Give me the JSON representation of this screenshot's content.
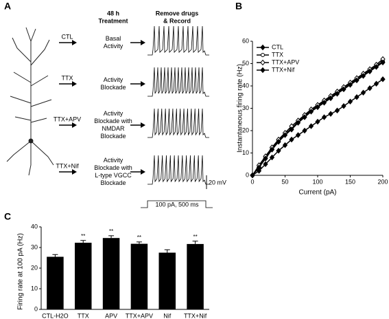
{
  "panel_a": {
    "label": "A",
    "treatment_header": [
      "48 h",
      "Treatment"
    ],
    "record_header": [
      "Remove drugs",
      "& Record"
    ],
    "rows": [
      {
        "condition": "CTL",
        "treatment": [
          "Basal",
          "Activity"
        ]
      },
      {
        "condition": "TTX",
        "treatment": [
          "Activity",
          "Blockade"
        ]
      },
      {
        "condition": "TTX+APV",
        "treatment": [
          "Activity",
          "Blockade with",
          "NMDAR",
          "Blockade"
        ]
      },
      {
        "condition": "TTX+Nif",
        "treatment": [
          "Activity",
          "Blockade with",
          "L-type VGCC",
          "Blockade"
        ]
      }
    ],
    "voltage_scale": "20 mV",
    "stimulus": "100 pA, 500 ms"
  },
  "chart_data": [
    {
      "type": "line",
      "panel": "B",
      "x_label": "Current (pA)",
      "y_label": "Instantaneous firing rate (Hz)",
      "x": [
        0,
        10,
        20,
        30,
        40,
        50,
        60,
        70,
        80,
        90,
        100,
        110,
        120,
        130,
        140,
        150,
        160,
        170,
        180,
        190,
        200
      ],
      "xlim": [
        0,
        200
      ],
      "xticks": [
        0,
        50,
        100,
        150,
        200
      ],
      "ylim": [
        0,
        60
      ],
      "yticks": [
        0,
        10,
        20,
        30,
        40,
        50,
        60
      ],
      "legend": "top-left",
      "series": [
        {
          "name": "CTL",
          "color": "#000000",
          "marker": "diamond",
          "values": [
            0,
            2,
            5,
            8,
            11,
            13.5,
            16,
            18,
            20,
            22,
            24,
            26,
            27.5,
            29,
            31,
            33,
            35,
            37,
            39,
            41,
            43
          ]
        },
        {
          "name": "TTX",
          "color": "#000000",
          "marker": "open-circle",
          "values": [
            0,
            4,
            8,
            12,
            15.5,
            18.5,
            21,
            24,
            26.5,
            29,
            31,
            33,
            35,
            37,
            39,
            41,
            43,
            45,
            47,
            49,
            51
          ]
        },
        {
          "name": "TTX+APV",
          "color": "#000000",
          "marker": "open-diamond",
          "values": [
            0,
            4.5,
            8.5,
            12.5,
            16,
            19,
            22,
            24.5,
            27,
            29.5,
            31.5,
            33.5,
            35.5,
            37.5,
            39.5,
            41.5,
            43.5,
            45.5,
            47.5,
            49.5,
            52
          ]
        },
        {
          "name": "TTX+Nif",
          "color": "#000000",
          "marker": "diamond",
          "values": [
            0,
            3.5,
            7.5,
            11.5,
            15,
            18,
            20.5,
            23.5,
            26,
            28.5,
            30.5,
            32.5,
            34.5,
            36.5,
            38.5,
            40.5,
            42.5,
            44.5,
            46.5,
            48.5,
            50.5
          ]
        }
      ]
    },
    {
      "type": "bar",
      "panel": "C",
      "y_label": "Firing rate at 100 pA (Hz)",
      "color": "#000000",
      "categories": [
        "CTL-H2O",
        "TTX",
        "APV",
        "TTX+APV",
        "Nif",
        "TTX+Nif"
      ],
      "values": [
        25.5,
        32.3,
        34.6,
        31.8,
        27.5,
        31.7
      ],
      "errors": [
        1.1,
        1.1,
        1.1,
        0.9,
        1.4,
        1.4
      ],
      "significance": [
        null,
        "**",
        "**",
        "**",
        null,
        "**"
      ],
      "ylim": [
        0,
        40
      ],
      "yticks": [
        0,
        10,
        20,
        30,
        40
      ]
    }
  ]
}
